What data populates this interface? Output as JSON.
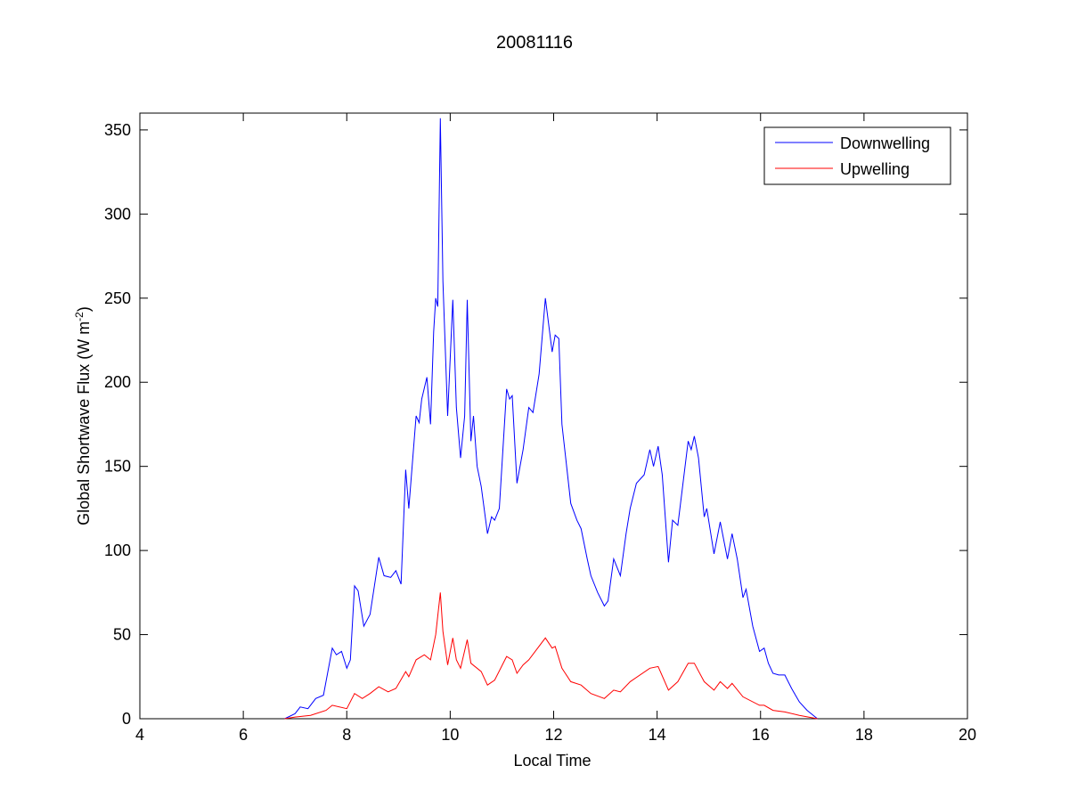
{
  "chart_data": {
    "type": "line",
    "title": "20081116",
    "xlabel": "Local Time",
    "ylabel": "Global Shortwave Flux (W m",
    "ylabel_sup": "-2",
    "ylabel_end": ")",
    "xlim": [
      4,
      20
    ],
    "ylim": [
      0,
      360
    ],
    "xticks": [
      4,
      6,
      8,
      10,
      12,
      14,
      16,
      18,
      20
    ],
    "yticks": [
      0,
      50,
      100,
      150,
      200,
      250,
      300,
      350
    ],
    "grid": false,
    "legend_position": "top-right",
    "series": [
      {
        "name": "Downwelling",
        "color": "#0000ff",
        "x": [
          6.8,
          7.0,
          7.1,
          7.25,
          7.4,
          7.55,
          7.72,
          7.8,
          7.9,
          8.0,
          8.07,
          8.15,
          8.22,
          8.33,
          8.45,
          8.62,
          8.72,
          8.85,
          8.95,
          9.05,
          9.14,
          9.2,
          9.34,
          9.4,
          9.45,
          9.55,
          9.62,
          9.68,
          9.72,
          9.76,
          9.81,
          9.86,
          9.95,
          10.05,
          10.12,
          10.2,
          10.28,
          10.33,
          10.4,
          10.45,
          10.52,
          10.6,
          10.72,
          10.8,
          10.86,
          10.95,
          11.09,
          11.15,
          11.2,
          11.29,
          11.41,
          11.52,
          11.6,
          11.72,
          11.84,
          11.97,
          12.03,
          12.1,
          12.16,
          12.33,
          12.45,
          12.53,
          12.65,
          12.72,
          12.85,
          12.98,
          13.05,
          13.16,
          13.29,
          13.4,
          13.48,
          13.6,
          13.75,
          13.86,
          13.93,
          14.02,
          14.1,
          14.22,
          14.3,
          14.4,
          14.5,
          14.6,
          14.66,
          14.72,
          14.8,
          14.91,
          14.96,
          15.1,
          15.22,
          15.36,
          15.45,
          15.55,
          15.66,
          15.72,
          15.85,
          15.98,
          16.07,
          16.15,
          16.24,
          16.35,
          16.47,
          16.6,
          16.75,
          16.9,
          17.1
        ],
        "y": [
          0,
          3,
          7,
          6,
          12,
          14,
          42,
          38,
          40,
          30,
          35,
          79,
          76,
          55,
          62,
          96,
          85,
          84,
          88,
          80,
          148,
          125,
          180,
          176,
          190,
          203,
          175,
          230,
          250,
          245,
          357,
          260,
          180,
          249,
          185,
          155,
          180,
          249,
          165,
          180,
          150,
          138,
          110,
          120,
          118,
          125,
          196,
          190,
          192,
          140,
          160,
          185,
          182,
          205,
          250,
          218,
          228,
          226,
          175,
          128,
          118,
          113,
          95,
          85,
          75,
          67,
          70,
          95,
          85,
          110,
          125,
          140,
          145,
          160,
          150,
          162,
          145,
          93,
          118,
          115,
          140,
          165,
          160,
          168,
          155,
          120,
          125,
          98,
          117,
          95,
          110,
          95,
          72,
          77,
          55,
          40,
          42,
          33,
          27,
          26,
          26,
          18,
          10,
          5,
          0
        ]
      },
      {
        "name": "Upwelling",
        "color": "#ff0000",
        "x": [
          6.8,
          7.0,
          7.3,
          7.6,
          7.72,
          8.0,
          8.15,
          8.3,
          8.45,
          8.62,
          8.8,
          8.95,
          9.14,
          9.2,
          9.34,
          9.5,
          9.62,
          9.72,
          9.81,
          9.86,
          9.95,
          10.05,
          10.12,
          10.2,
          10.33,
          10.4,
          10.6,
          10.72,
          10.86,
          11.09,
          11.2,
          11.29,
          11.41,
          11.52,
          11.84,
          11.97,
          12.03,
          12.16,
          12.33,
          12.53,
          12.72,
          12.98,
          13.16,
          13.29,
          13.48,
          13.86,
          14.02,
          14.22,
          14.4,
          14.6,
          14.72,
          14.91,
          15.1,
          15.22,
          15.36,
          15.45,
          15.66,
          15.98,
          16.07,
          16.24,
          16.47,
          16.75,
          17.1
        ],
        "y": [
          0,
          1,
          2,
          5,
          8,
          6,
          15,
          12,
          15,
          19,
          16,
          18,
          28,
          25,
          35,
          38,
          35,
          50,
          75,
          52,
          32,
          48,
          35,
          30,
          47,
          33,
          28,
          20,
          23,
          37,
          35,
          27,
          32,
          35,
          48,
          42,
          43,
          30,
          22,
          20,
          15,
          12,
          17,
          16,
          22,
          30,
          31,
          17,
          22,
          33,
          33,
          22,
          17,
          22,
          18,
          21,
          13,
          8,
          8,
          5,
          4,
          2,
          0
        ]
      }
    ]
  }
}
